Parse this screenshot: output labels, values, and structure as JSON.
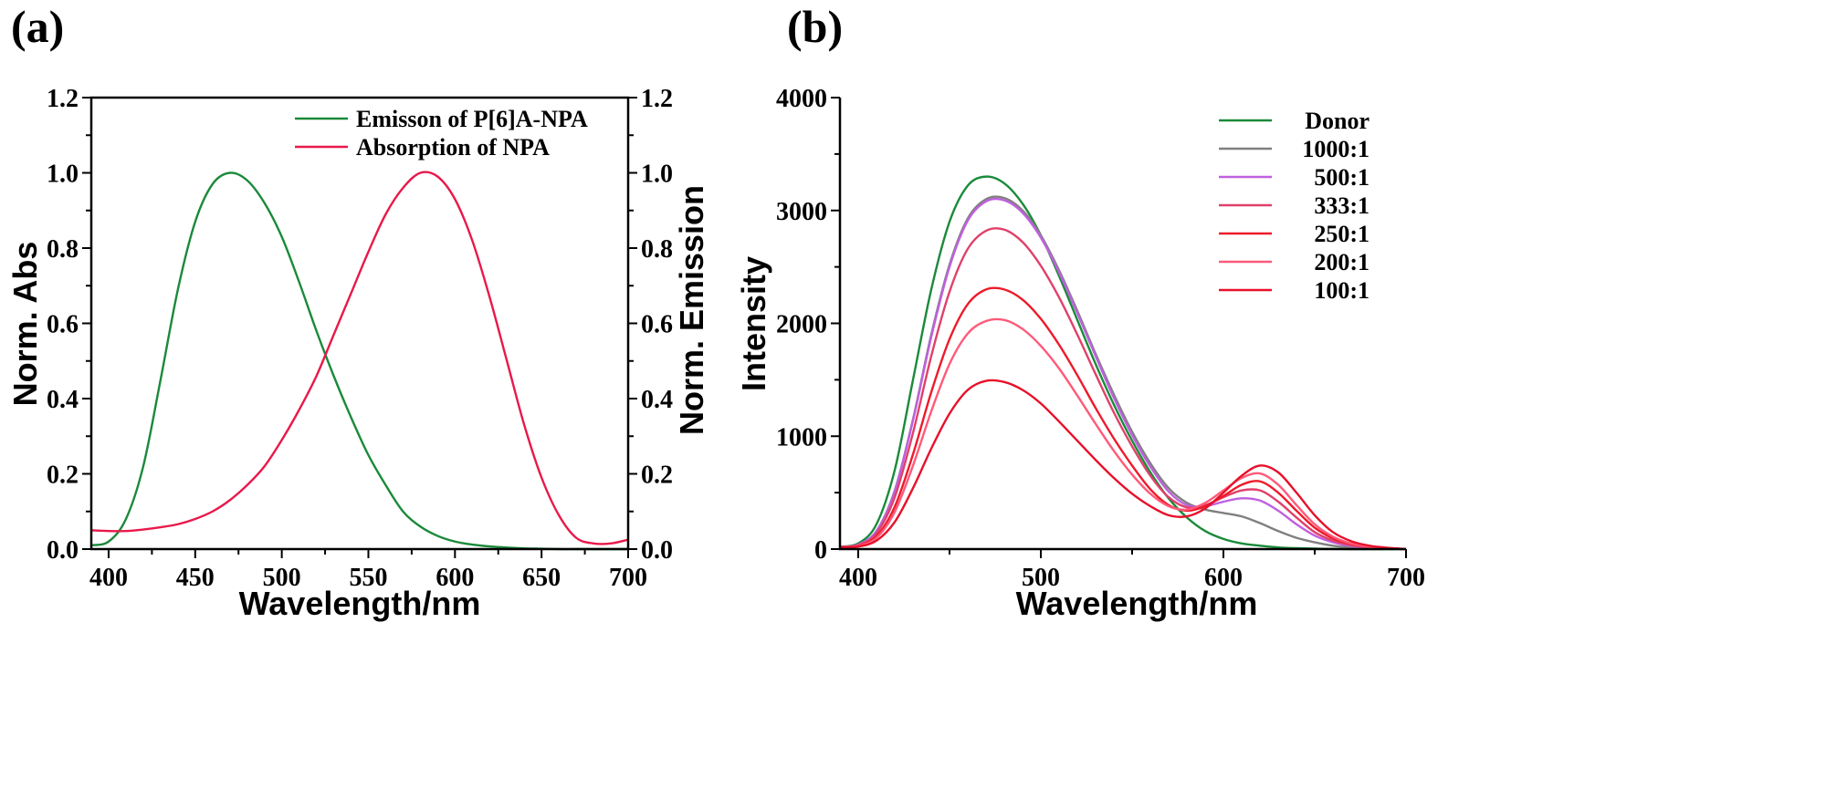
{
  "panels": {
    "a": "(a)",
    "b": "(b)"
  },
  "chart_data": [
    {
      "type": "line",
      "panel": "(a)",
      "xlabel": "Wavelength/nm",
      "ylabel_left": "Norm. Abs",
      "ylabel_right": "Norm. Emission",
      "xlim": [
        390,
        700
      ],
      "ylim": [
        0.0,
        1.2
      ],
      "x_ticks": [
        "400",
        "450",
        "500",
        "550",
        "600",
        "650",
        "700"
      ],
      "y_ticks": [
        "0.0",
        "0.2",
        "0.4",
        "0.6",
        "0.8",
        "1.0",
        "1.2"
      ],
      "legend_position": "top-right",
      "series": [
        {
          "name": "Emisson of P[6]A-NPA",
          "color": "#1a8a3a",
          "x": [
            390,
            400,
            410,
            420,
            430,
            440,
            450,
            460,
            470,
            480,
            490,
            500,
            510,
            520,
            530,
            540,
            550,
            560,
            570,
            580,
            590,
            600,
            610,
            620,
            630,
            640,
            650,
            660,
            670,
            680,
            690,
            700
          ],
          "y": [
            0.01,
            0.02,
            0.08,
            0.22,
            0.45,
            0.69,
            0.87,
            0.97,
            1.0,
            0.98,
            0.92,
            0.83,
            0.71,
            0.58,
            0.46,
            0.35,
            0.25,
            0.17,
            0.1,
            0.06,
            0.035,
            0.02,
            0.012,
            0.007,
            0.004,
            0.002,
            0.001,
            0.0,
            0.0,
            0.0,
            0.0,
            0.0
          ]
        },
        {
          "name": "Absorption of NPA",
          "color": "#e8194a",
          "x": [
            390,
            400,
            410,
            420,
            430,
            440,
            450,
            460,
            470,
            480,
            490,
            500,
            510,
            520,
            530,
            540,
            550,
            560,
            570,
            580,
            590,
            600,
            610,
            620,
            630,
            640,
            650,
            660,
            670,
            680,
            690,
            700
          ],
          "y": [
            0.05,
            0.048,
            0.048,
            0.052,
            0.058,
            0.066,
            0.08,
            0.1,
            0.13,
            0.17,
            0.22,
            0.29,
            0.37,
            0.46,
            0.57,
            0.68,
            0.79,
            0.89,
            0.96,
            1.0,
            0.99,
            0.93,
            0.82,
            0.67,
            0.5,
            0.33,
            0.19,
            0.09,
            0.03,
            0.015,
            0.015,
            0.025
          ]
        }
      ]
    },
    {
      "type": "line",
      "panel": "(b)",
      "xlabel": "Wavelength/nm",
      "ylabel": "Intensity",
      "xlim": [
        390,
        700
      ],
      "ylim": [
        0,
        4000
      ],
      "x_ticks": [
        "400",
        "500",
        "600",
        "700"
      ],
      "y_ticks": [
        "0",
        "1000",
        "2000",
        "3000",
        "4000"
      ],
      "legend_position": "top-right",
      "series": [
        {
          "name": "Donor",
          "color": "#1a8a3a",
          "x": [
            390,
            400,
            410,
            420,
            430,
            440,
            450,
            460,
            470,
            480,
            490,
            500,
            510,
            520,
            530,
            540,
            550,
            560,
            570,
            580,
            590,
            600,
            610,
            620,
            630,
            640,
            650,
            660,
            670,
            680,
            690,
            700
          ],
          "y": [
            20,
            50,
            220,
            700,
            1500,
            2300,
            2900,
            3220,
            3300,
            3240,
            3060,
            2780,
            2420,
            2030,
            1640,
            1280,
            960,
            680,
            450,
            280,
            160,
            90,
            50,
            30,
            15,
            8,
            4,
            2,
            0,
            0,
            0,
            0
          ]
        },
        {
          "name": "1000:1",
          "color": "#808080",
          "x": [
            390,
            400,
            410,
            420,
            430,
            440,
            450,
            460,
            470,
            480,
            490,
            500,
            510,
            520,
            530,
            540,
            550,
            560,
            570,
            580,
            590,
            600,
            610,
            620,
            630,
            640,
            650,
            660,
            670,
            680,
            690,
            700
          ],
          "y": [
            20,
            40,
            160,
            520,
            1150,
            1900,
            2520,
            2930,
            3100,
            3110,
            3000,
            2780,
            2470,
            2110,
            1730,
            1370,
            1040,
            760,
            540,
            410,
            350,
            320,
            290,
            230,
            160,
            100,
            60,
            30,
            15,
            8,
            4,
            0
          ]
        },
        {
          "name": "500:1",
          "color": "#c060e0",
          "x": [
            390,
            400,
            410,
            420,
            430,
            440,
            450,
            460,
            470,
            480,
            490,
            500,
            510,
            520,
            530,
            540,
            550,
            560,
            570,
            580,
            590,
            600,
            610,
            620,
            630,
            640,
            650,
            660,
            670,
            680,
            690,
            700
          ],
          "y": [
            20,
            40,
            160,
            510,
            1140,
            1880,
            2500,
            2910,
            3080,
            3090,
            2980,
            2760,
            2450,
            2090,
            1710,
            1340,
            1010,
            730,
            510,
            390,
            380,
            420,
            450,
            430,
            340,
            220,
            120,
            60,
            28,
            14,
            6,
            0
          ]
        },
        {
          "name": "333:1",
          "color": "#e0406a",
          "x": [
            390,
            400,
            410,
            420,
            430,
            440,
            450,
            460,
            470,
            480,
            490,
            500,
            510,
            520,
            530,
            540,
            550,
            560,
            570,
            580,
            590,
            600,
            610,
            620,
            630,
            640,
            650,
            660,
            670,
            680,
            690,
            700
          ],
          "y": [
            20,
            35,
            140,
            460,
            1030,
            1710,
            2280,
            2660,
            2820,
            2830,
            2720,
            2510,
            2230,
            1900,
            1550,
            1210,
            910,
            650,
            460,
            370,
            390,
            460,
            520,
            520,
            420,
            280,
            150,
            75,
            35,
            16,
            7,
            0
          ]
        },
        {
          "name": "250:1",
          "color": "#ee1a2a",
          "x": [
            390,
            400,
            410,
            420,
            430,
            440,
            450,
            460,
            470,
            480,
            490,
            500,
            510,
            520,
            530,
            540,
            550,
            560,
            570,
            580,
            590,
            600,
            610,
            620,
            630,
            640,
            650,
            660,
            670,
            680,
            690,
            700
          ],
          "y": [
            18,
            30,
            115,
            375,
            840,
            1390,
            1860,
            2170,
            2300,
            2300,
            2210,
            2040,
            1810,
            1540,
            1250,
            980,
            740,
            530,
            390,
            340,
            380,
            470,
            570,
            600,
            500,
            340,
            190,
            95,
            45,
            20,
            8,
            0
          ]
        },
        {
          "name": "200:1",
          "color": "#ff5a7a",
          "x": [
            390,
            400,
            410,
            420,
            430,
            440,
            450,
            460,
            470,
            480,
            490,
            500,
            510,
            520,
            530,
            540,
            550,
            560,
            570,
            580,
            590,
            600,
            610,
            620,
            630,
            640,
            650,
            660,
            670,
            680,
            690,
            700
          ],
          "y": [
            16,
            28,
            100,
            330,
            740,
            1220,
            1640,
            1910,
            2020,
            2030,
            1950,
            1800,
            1600,
            1360,
            1110,
            870,
            660,
            490,
            380,
            350,
            410,
            520,
            630,
            670,
            570,
            390,
            220,
            110,
            50,
            22,
            9,
            0
          ]
        },
        {
          "name": "100:1",
          "color": "#e8102a",
          "x": [
            390,
            400,
            410,
            420,
            430,
            440,
            450,
            460,
            470,
            480,
            490,
            500,
            510,
            520,
            530,
            540,
            550,
            560,
            570,
            580,
            590,
            600,
            610,
            620,
            630,
            640,
            650,
            660,
            670,
            680,
            690,
            700
          ],
          "y": [
            14,
            22,
            75,
            240,
            540,
            890,
            1200,
            1410,
            1490,
            1480,
            1410,
            1290,
            1130,
            960,
            790,
            630,
            490,
            380,
            300,
            290,
            360,
            500,
            650,
            740,
            680,
            500,
            300,
            150,
            70,
            30,
            12,
            0
          ]
        }
      ]
    }
  ]
}
